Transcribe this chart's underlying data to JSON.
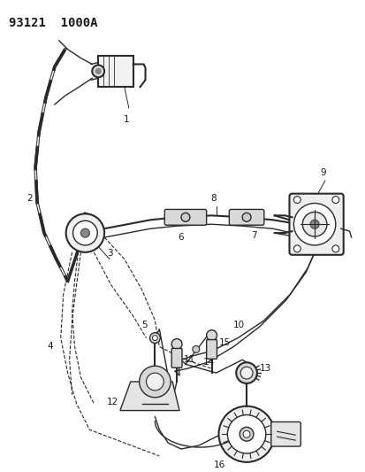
{
  "title": "93121  1000A",
  "bg_color": "#ffffff",
  "line_color": "#2a2a2a",
  "text_color": "#1a1a1a",
  "title_fontsize": 10,
  "label_fontsize": 7.5
}
